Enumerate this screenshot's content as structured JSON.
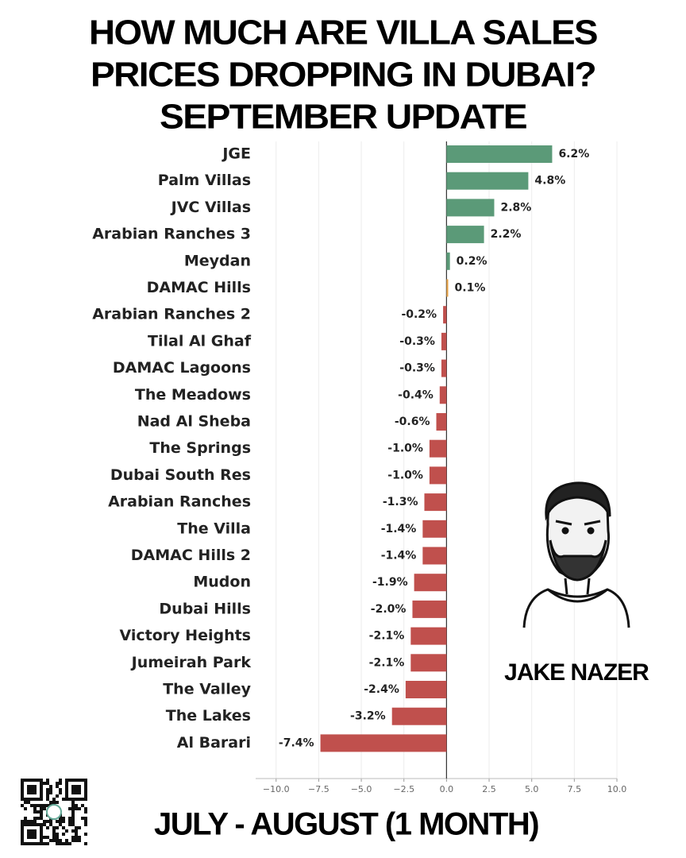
{
  "chart_data": {
    "type": "barh",
    "title": [
      "HOW MUCH ARE VILLA SALES",
      "PRICES DROPPING IN DUBAI?",
      "SEPTEMBER UPDATE"
    ],
    "categories": [
      "JGE",
      "Palm Villas",
      "JVC Villas",
      "Arabian Ranches 3",
      "Meydan",
      "DAMAC Hills",
      "Arabian Ranches 2",
      "Tilal Al Ghaf",
      "DAMAC Lagoons",
      "The Meadows",
      "Nad Al Sheba",
      "The Springs",
      "Dubai South Res",
      "Arabian Ranches",
      "The Villa",
      "DAMAC Hills 2",
      "Mudon",
      "Dubai Hills",
      "Victory Heights",
      "Jumeirah Park",
      "The Valley",
      "The Lakes",
      "Al Barari"
    ],
    "values": [
      6.2,
      4.8,
      2.8,
      2.2,
      0.2,
      0.1,
      -0.2,
      -0.3,
      -0.3,
      -0.4,
      -0.6,
      -1.0,
      -1.0,
      -1.3,
      -1.4,
      -1.4,
      -1.9,
      -2.0,
      -2.1,
      -2.1,
      -2.4,
      -3.2,
      -7.4
    ],
    "value_labels": [
      "6.2%",
      "4.8%",
      "2.8%",
      "2.2%",
      "0.2%",
      "0.1%",
      "-0.2%",
      "-0.3%",
      "-0.3%",
      "-0.4%",
      "-0.6%",
      "-1.0%",
      "-1.0%",
      "-1.3%",
      "-1.4%",
      "-1.4%",
      "-1.9%",
      "-2.0%",
      "-2.1%",
      "-2.1%",
      "-2.4%",
      "-3.2%",
      "-7.4%"
    ],
    "colors": [
      "#5b9a78",
      "#5b9a78",
      "#5b9a78",
      "#5b9a78",
      "#5b9a78",
      "#e8a44a",
      "#c0504d",
      "#c0504d",
      "#c0504d",
      "#c0504d",
      "#c0504d",
      "#c0504d",
      "#c0504d",
      "#c0504d",
      "#c0504d",
      "#c0504d",
      "#c0504d",
      "#c0504d",
      "#c0504d",
      "#c0504d",
      "#c0504d",
      "#c0504d",
      "#c0504d"
    ],
    "xlim": [
      -11.2,
      10
    ],
    "xticks": [
      {
        "value": -10,
        "label": "−10.0"
      },
      {
        "value": -7.5,
        "label": "−7.5"
      },
      {
        "value": -5,
        "label": "−5.0"
      },
      {
        "value": -2.5,
        "label": "−2.5"
      },
      {
        "value": 0,
        "label": "0.0"
      },
      2.5,
      {
        "value": 5,
        "label": "5.0"
      },
      7.5,
      {
        "value": 10,
        "label": "10.0"
      }
    ],
    "grid": true,
    "author": "JAKE NAZER",
    "footer": "JULY - AUGUST (1 MONTH)"
  }
}
